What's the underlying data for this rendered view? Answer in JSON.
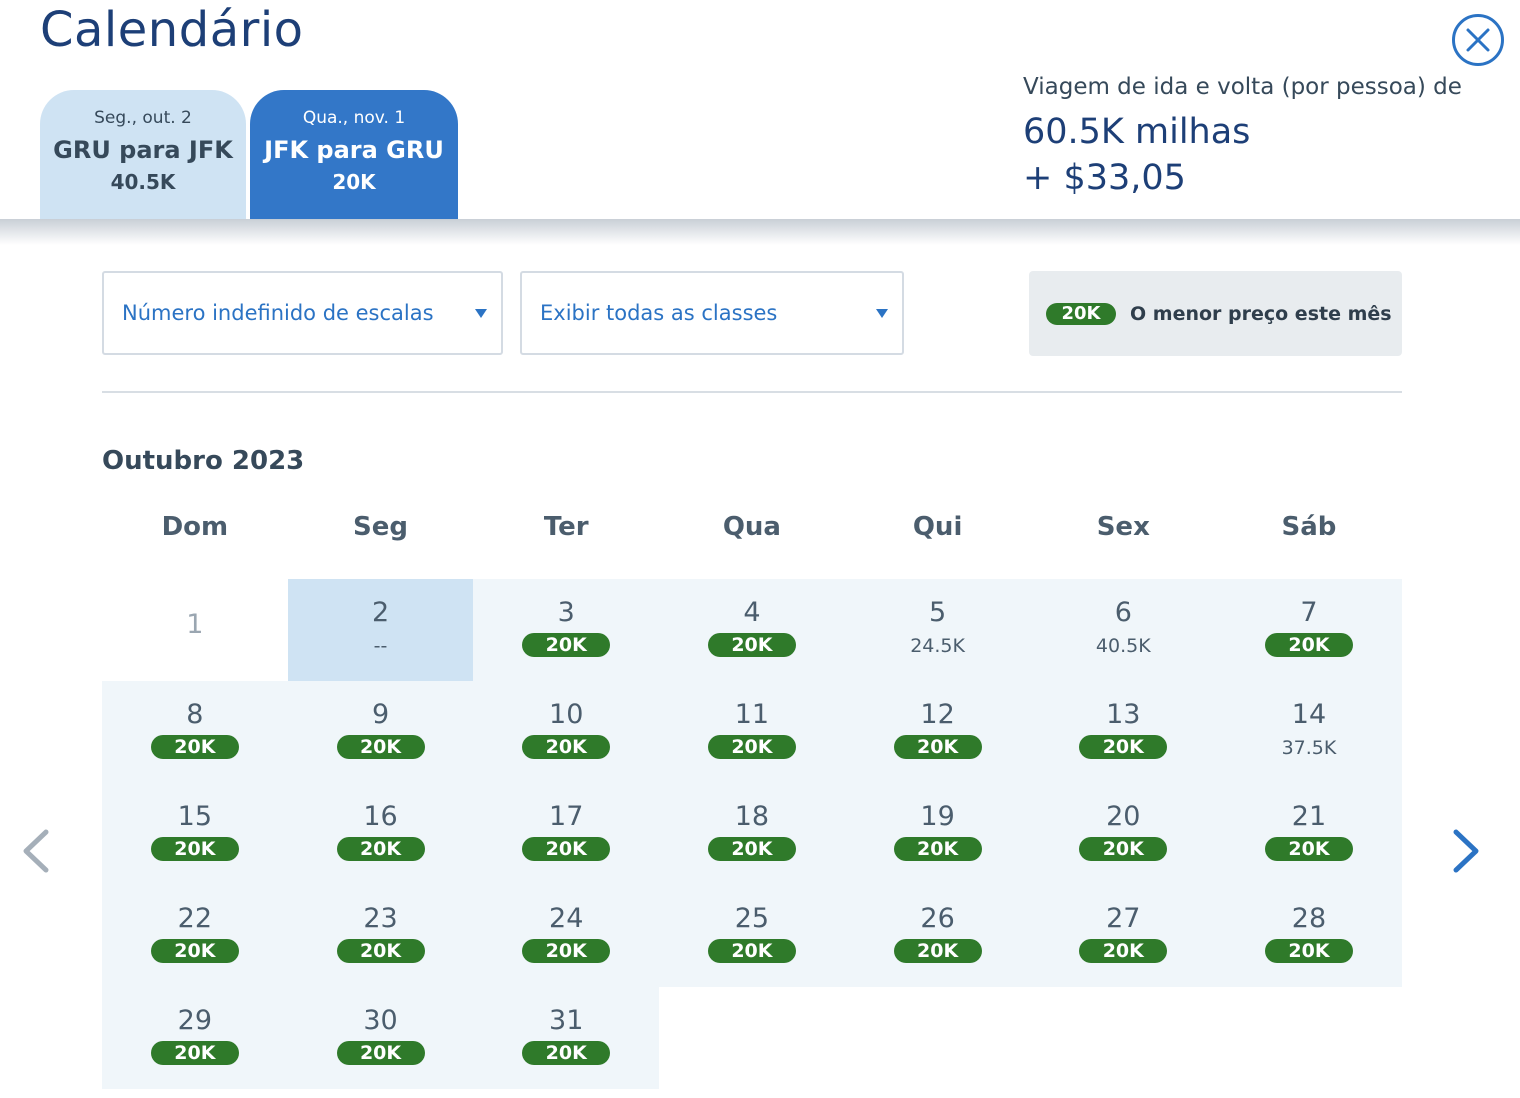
{
  "title": "Calendário",
  "tabs": [
    {
      "date": "Seg., out. 2",
      "route": "GRU para JFK",
      "price": "40.5K"
    },
    {
      "date": "Qua., nov. 1",
      "route": "JFK para GRU",
      "price": "20K"
    }
  ],
  "summary": {
    "label": "Viagem de ida e volta (por pessoa) de",
    "miles": "60.5K milhas",
    "fee": "+ $33,05"
  },
  "filters": {
    "stops": "Número indefinido de escalas",
    "classes": "Exibir todas as classes"
  },
  "legend": {
    "badge": "20K",
    "text": "O menor preço este mês"
  },
  "month_label": "Outubro 2023",
  "weekdays": [
    "Dom",
    "Seg",
    "Ter",
    "Qua",
    "Qui",
    "Sex",
    "Sáb"
  ],
  "days": [
    {
      "day": "1",
      "price": "",
      "state": "disabled"
    },
    {
      "day": "2",
      "price": "--",
      "state": "selected"
    },
    {
      "day": "3",
      "price": "20K",
      "lowest": true
    },
    {
      "day": "4",
      "price": "20K",
      "lowest": true
    },
    {
      "day": "5",
      "price": "24.5K",
      "lowest": false
    },
    {
      "day": "6",
      "price": "40.5K",
      "lowest": false
    },
    {
      "day": "7",
      "price": "20K",
      "lowest": true
    },
    {
      "day": "8",
      "price": "20K",
      "lowest": true
    },
    {
      "day": "9",
      "price": "20K",
      "lowest": true
    },
    {
      "day": "10",
      "price": "20K",
      "lowest": true
    },
    {
      "day": "11",
      "price": "20K",
      "lowest": true
    },
    {
      "day": "12",
      "price": "20K",
      "lowest": true
    },
    {
      "day": "13",
      "price": "20K",
      "lowest": true
    },
    {
      "day": "14",
      "price": "37.5K",
      "lowest": false
    },
    {
      "day": "15",
      "price": "20K",
      "lowest": true
    },
    {
      "day": "16",
      "price": "20K",
      "lowest": true
    },
    {
      "day": "17",
      "price": "20K",
      "lowest": true
    },
    {
      "day": "18",
      "price": "20K",
      "lowest": true
    },
    {
      "day": "19",
      "price": "20K",
      "lowest": true
    },
    {
      "day": "20",
      "price": "20K",
      "lowest": true
    },
    {
      "day": "21",
      "price": "20K",
      "lowest": true
    },
    {
      "day": "22",
      "price": "20K",
      "lowest": true
    },
    {
      "day": "23",
      "price": "20K",
      "lowest": true
    },
    {
      "day": "24",
      "price": "20K",
      "lowest": true
    },
    {
      "day": "25",
      "price": "20K",
      "lowest": true
    },
    {
      "day": "26",
      "price": "20K",
      "lowest": true
    },
    {
      "day": "27",
      "price": "20K",
      "lowest": true
    },
    {
      "day": "28",
      "price": "20K",
      "lowest": true
    },
    {
      "day": "29",
      "price": "20K",
      "lowest": true
    },
    {
      "day": "30",
      "price": "20K",
      "lowest": true
    },
    {
      "day": "31",
      "price": "20K",
      "lowest": true
    }
  ],
  "icons": {
    "close": "close-icon",
    "prev": "chevron-left-icon",
    "next": "chevron-right-icon",
    "dropdown": "caret-down-icon"
  },
  "colors": {
    "brand": "#1d3f77",
    "accent": "#2b73c4",
    "lowest_price": "#2f7a2a",
    "selected": "#cfe3f3",
    "active_tab": "#3377c8"
  }
}
